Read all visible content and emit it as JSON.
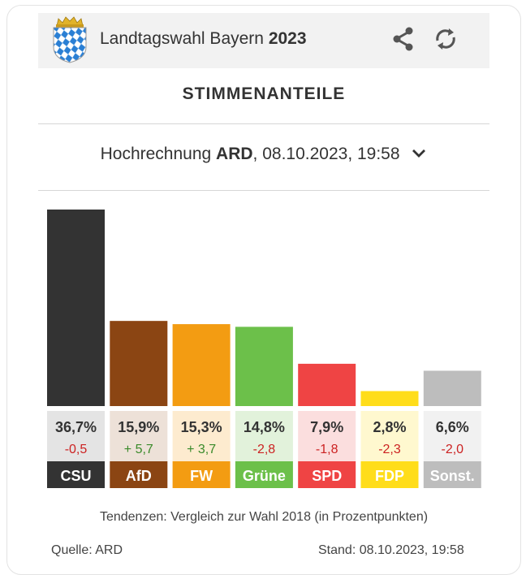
{
  "header": {
    "title": "Landtagswahl Bayern",
    "year": "2023",
    "share_icon": "share-icon",
    "refresh_icon": "refresh-icon"
  },
  "section_title": "STIMMENANTEILE",
  "dropdown": {
    "prefix": "Hochrechnung",
    "source": "ARD",
    "suffix": ", 08.10.2023, 19:58",
    "icon": "chevron-down-icon"
  },
  "chart_data": {
    "type": "bar",
    "title": "STIMMENANTEILE",
    "ylim": [
      0,
      36.7
    ],
    "categories": [
      "CSU",
      "AfD",
      "FW",
      "Grüne",
      "SPD",
      "FDP",
      "Sonst."
    ],
    "values": [
      36.7,
      15.9,
      15.3,
      14.8,
      7.9,
      2.8,
      6.6
    ],
    "value_labels": [
      "36,7%",
      "15,9%",
      "15,3%",
      "14,8%",
      "7,9%",
      "2,8%",
      "6,6%"
    ],
    "change_labels": [
      "-0,5",
      "+ 5,7",
      "+ 3,7",
      "-2,8",
      "-1,8",
      "-2,3",
      "-2,0"
    ],
    "change_direction": [
      "down",
      "up",
      "up",
      "down",
      "down",
      "down",
      "down"
    ],
    "colors": [
      "#333333",
      "#8b4513",
      "#f39c12",
      "#6cc04a",
      "#ef4444",
      "#ffdd1a",
      "#bdbdbd"
    ],
    "tint_colors": [
      "#e4e4e4",
      "#ede1d8",
      "#fdebcf",
      "#e2f2db",
      "#fbdede",
      "#fff8cf",
      "#f1f1f1"
    ],
    "positive_color": "#3a8a2a",
    "negative_color": "#cc2222"
  },
  "footer": {
    "note": "Tendenzen: Vergleich zur Wahl 2018 (in Prozentpunkten)",
    "source": "Quelle: ARD",
    "timestamp": "Stand: 08.10.2023, 19:58"
  }
}
